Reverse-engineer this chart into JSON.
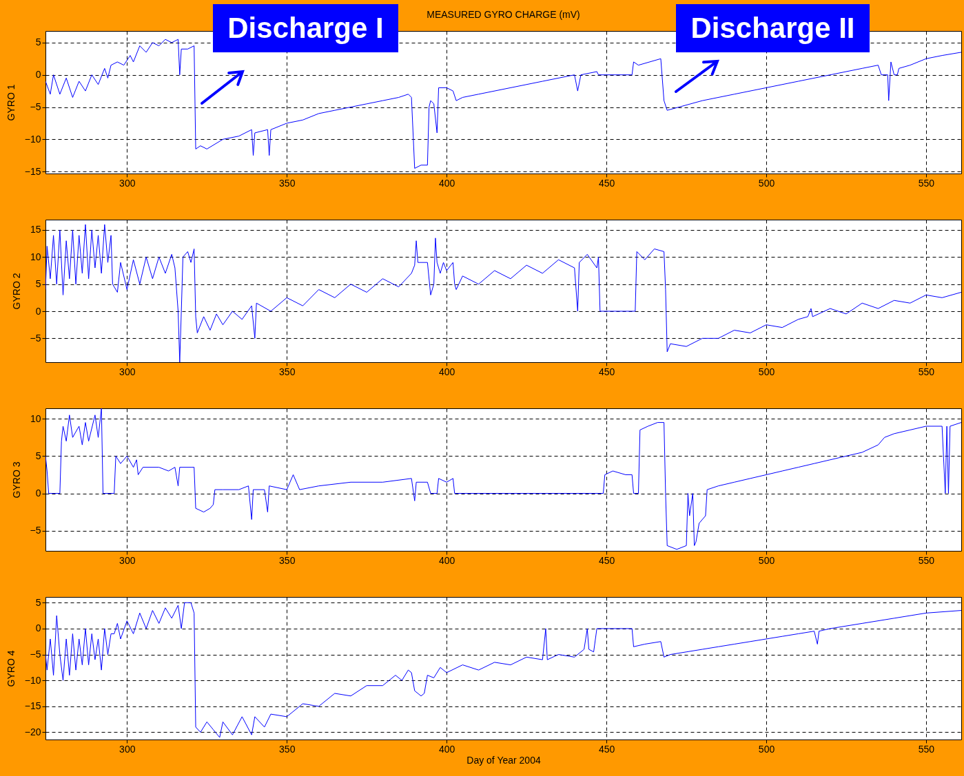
{
  "chart_data": [
    {
      "type": "line",
      "title": "MEASURED GYRO CHARGE (mV)",
      "ylabel": "GYRO 1",
      "xlim": [
        274.5,
        561
      ],
      "xticks": [
        300,
        350,
        400,
        450,
        500,
        550
      ],
      "ylim": [
        -15.3,
        6.8
      ],
      "yticks": [
        -15,
        -10,
        -5,
        0,
        5
      ],
      "grid": true,
      "annotations": [
        "Discharge I",
        "Discharge II"
      ],
      "series": [
        {
          "color": "#0000ff",
          "x": [
            274.5,
            276,
            277,
            279,
            281,
            283,
            285,
            287,
            289,
            291,
            293,
            294,
            295,
            297,
            299,
            301,
            302,
            304,
            306,
            308,
            310,
            312,
            314,
            316,
            316.5,
            317,
            319,
            321,
            321.5,
            323,
            325,
            330,
            335,
            339,
            339.5,
            340,
            344,
            344.5,
            345,
            350,
            355,
            360,
            365,
            370,
            375,
            380,
            385,
            388,
            389,
            390,
            392,
            394,
            394.5,
            395,
            396,
            397,
            397.5,
            400,
            402,
            403,
            405,
            410,
            420,
            430,
            440,
            441,
            442,
            447,
            447.5,
            458,
            458.5,
            460,
            467,
            468,
            469,
            480,
            490,
            500,
            510,
            520,
            530,
            535,
            536,
            538,
            538.3,
            539,
            540,
            541,
            541.5,
            545,
            550,
            555,
            561
          ],
          "values": [
            -1,
            -3,
            0,
            -3,
            -0.5,
            -3.5,
            -1,
            -2.5,
            0,
            -1.5,
            1,
            -0.5,
            1.5,
            2,
            1.5,
            3,
            2,
            4.5,
            3.5,
            5,
            4.5,
            5.5,
            5,
            5.5,
            0,
            4,
            4,
            4.5,
            -11.5,
            -11,
            -11.5,
            -10,
            -9.5,
            -8.5,
            -12.5,
            -9,
            -8.5,
            -12.5,
            -8.5,
            -7.5,
            -7,
            -6,
            -5.5,
            -5,
            -4.5,
            -4,
            -3.5,
            -3,
            -3.5,
            -14.5,
            -14,
            -14,
            -5,
            -4,
            -4.5,
            -9,
            -2,
            -2,
            -2.5,
            -4,
            -3.5,
            -3,
            -2,
            -1,
            0,
            -2.5,
            0,
            0.5,
            0,
            0,
            2,
            1.5,
            2.5,
            -4,
            -5.5,
            -4,
            -3,
            -2,
            -1,
            0,
            1,
            1.5,
            0,
            0,
            -4,
            2,
            0,
            0,
            1,
            1.5,
            2.5,
            3,
            3.5
          ]
        }
      ]
    },
    {
      "type": "line",
      "ylabel": "GYRO 2",
      "xlim": [
        274.5,
        561
      ],
      "xticks": [
        300,
        350,
        400,
        450,
        500,
        550
      ],
      "ylim": [
        -9.4,
        16.9
      ],
      "yticks": [
        -5,
        0,
        5,
        10,
        15
      ],
      "grid": true,
      "series": [
        {
          "color": "#0000ff",
          "x": [
            274.5,
            275,
            276,
            277,
            278,
            279,
            280,
            281,
            282,
            283,
            284,
            285,
            286,
            287,
            288,
            289,
            290,
            291,
            292,
            293,
            294,
            295,
            295.5,
            297,
            298,
            300,
            302,
            304,
            306,
            308,
            310,
            312,
            314,
            315,
            316,
            316.5,
            317,
            317.5,
            319,
            320,
            321,
            321.5,
            322,
            324,
            326,
            328,
            330,
            333,
            336,
            339,
            340,
            340.5,
            345,
            350,
            355,
            360,
            365,
            370,
            375,
            380,
            385,
            389,
            390,
            390.5,
            391,
            394,
            395,
            396,
            396.5,
            397,
            398,
            399,
            400,
            402,
            402.5,
            403,
            405,
            410,
            415,
            420,
            425,
            430,
            435,
            440,
            441,
            441.5,
            444,
            447,
            447.5,
            448,
            459,
            459.5,
            462,
            465,
            468,
            468.5,
            469,
            470,
            475,
            480,
            485,
            490,
            495,
            500,
            505,
            510,
            513,
            514,
            514.5,
            520,
            525,
            530,
            535,
            540,
            545,
            550,
            555,
            561
          ],
          "values": [
            4,
            12,
            6,
            14,
            5,
            15,
            3,
            13,
            6,
            15,
            5,
            14,
            7,
            16,
            6,
            15,
            8,
            14,
            7,
            16,
            9,
            14,
            5,
            3.5,
            9,
            4,
            9.5,
            5,
            10,
            6,
            10,
            7,
            10.5,
            8,
            0,
            -9.4,
            0,
            10,
            11,
            9,
            11.5,
            -1,
            -4,
            -1,
            -3.5,
            -0.5,
            -2.5,
            0,
            -1.5,
            1,
            -5,
            1.5,
            0,
            2.5,
            1,
            4,
            2.5,
            5,
            3.5,
            6,
            4.5,
            7,
            8.5,
            13,
            9,
            9,
            3,
            5,
            13.5,
            9,
            7,
            9,
            7.5,
            9,
            5,
            4,
            6.5,
            5,
            7.5,
            6,
            8.5,
            7,
            9.5,
            8,
            0,
            9,
            10.5,
            8,
            10,
            0,
            0,
            11,
            9.5,
            11.5,
            11,
            4,
            -7.5,
            -6,
            -6.5,
            -5,
            -5,
            -3.5,
            -4,
            -2.5,
            -3,
            -1.5,
            -1,
            0.5,
            -1,
            0.5,
            -0.5,
            1.5,
            0.5,
            2,
            1.5,
            3,
            2.5,
            3.5
          ]
        }
      ]
    },
    {
      "type": "line",
      "ylabel": "GYRO 3",
      "xlim": [
        274.5,
        561
      ],
      "xticks": [
        300,
        350,
        400,
        450,
        500,
        550
      ],
      "ylim": [
        -7.7,
        11.4
      ],
      "yticks": [
        -5,
        0,
        5,
        10
      ],
      "grid": true,
      "series": [
        {
          "color": "#0000ff",
          "x": [
            274.5,
            275,
            275.5,
            279,
            279.5,
            280,
            281,
            282,
            283,
            285,
            286,
            287,
            288,
            290,
            291,
            292,
            292.5,
            296,
            296.5,
            298,
            300,
            302,
            303,
            303.5,
            305,
            310,
            313,
            315,
            316,
            316.5,
            320,
            321,
            321.5,
            324,
            326,
            327,
            327.5,
            330,
            335,
            338,
            339,
            339.5,
            343,
            344,
            344.5,
            350,
            352,
            354,
            360,
            370,
            380,
            389,
            390,
            390.5,
            394,
            395,
            397,
            397.5,
            400,
            402,
            402.5,
            449,
            449.5,
            452,
            456,
            458,
            458.5,
            460,
            460.5,
            463,
            466,
            468,
            468.5,
            469,
            472,
            475,
            475.5,
            476,
            477,
            477.5,
            478,
            479,
            481,
            481.5,
            485,
            490,
            495,
            500,
            505,
            510,
            515,
            520,
            525,
            530,
            535,
            537,
            540,
            545,
            550,
            555,
            556,
            556.5,
            557,
            557.5,
            561
          ],
          "values": [
            5,
            3,
            0,
            0,
            7,
            9,
            7,
            10.5,
            7.5,
            9,
            6.5,
            9.5,
            7,
            10.5,
            7.5,
            11.4,
            0,
            0,
            5,
            4,
            5,
            3.5,
            4.5,
            2.5,
            3.5,
            3.5,
            3,
            3.5,
            1,
            3.5,
            3.5,
            3.5,
            -2,
            -2.5,
            -2,
            -1.5,
            0.5,
            0.5,
            0.5,
            1,
            -3.5,
            0.5,
            0.5,
            -2.5,
            1,
            0.5,
            2.5,
            0.5,
            1,
            1.5,
            1.5,
            2,
            -1,
            1.5,
            1.5,
            0,
            0,
            2,
            1.5,
            2,
            0,
            0,
            2.5,
            3,
            2.5,
            2.5,
            0,
            0,
            8.5,
            9,
            9.5,
            9.5,
            0,
            -7,
            -7.5,
            -7,
            0,
            -3,
            0,
            -7,
            -6.5,
            -4,
            -3,
            0.5,
            1,
            1.5,
            2,
            2.5,
            3,
            3.5,
            4,
            4.5,
            5,
            5.5,
            6.5,
            7.5,
            8,
            8.5,
            9,
            9,
            0,
            9,
            0,
            9,
            9.5
          ]
        }
      ]
    },
    {
      "type": "line",
      "ylabel": "GYRO 4",
      "xlabel": "Day of Year 2004",
      "xlim": [
        274.5,
        561
      ],
      "xticks": [
        300,
        350,
        400,
        450,
        500,
        550
      ],
      "ylim": [
        -21.4,
        6.1
      ],
      "yticks": [
        -20,
        -15,
        -10,
        -5,
        0,
        5
      ],
      "grid": true,
      "series": [
        {
          "color": "#0000ff",
          "x": [
            274.5,
            275,
            276,
            277,
            278,
            279,
            280,
            281,
            282,
            283,
            284,
            285,
            286,
            287,
            288,
            289,
            290,
            291,
            292,
            293,
            294,
            295,
            296,
            297,
            298,
            300,
            302,
            304,
            306,
            308,
            310,
            312,
            314,
            316,
            317,
            318,
            320,
            321,
            321.5,
            323,
            325,
            327,
            329,
            330,
            333,
            336,
            339,
            340,
            343,
            345,
            350,
            355,
            360,
            365,
            370,
            375,
            380,
            384,
            386,
            388,
            389,
            390,
            392,
            393,
            394,
            396,
            398,
            400,
            405,
            410,
            415,
            420,
            425,
            430,
            431,
            431.5,
            435,
            440,
            443,
            444,
            444.5,
            446,
            447,
            458,
            458.5,
            462,
            467,
            468,
            470,
            475,
            480,
            485,
            490,
            495,
            500,
            505,
            510,
            515,
            516,
            516.5,
            520,
            530,
            540,
            550,
            561
          ],
          "values": [
            -5,
            -8,
            -2,
            -9,
            2.5,
            -5,
            -10,
            -2,
            -9,
            -1,
            -8,
            -2,
            -7,
            0,
            -7,
            -1,
            -6,
            -2,
            -8,
            0,
            -5,
            -1,
            -1,
            1,
            -2,
            1.5,
            -1,
            3,
            0,
            3.5,
            1,
            4,
            2,
            4.5,
            0,
            5,
            5,
            3,
            -19,
            -20,
            -18,
            -19.5,
            -21,
            -18,
            -20.5,
            -17,
            -20.5,
            -17,
            -19,
            -16.5,
            -17,
            -14.5,
            -15,
            -12.5,
            -13,
            -11,
            -11,
            -9,
            -10,
            -8,
            -8.5,
            -12,
            -13,
            -12.5,
            -9,
            -9.5,
            -7.5,
            -8.5,
            -7,
            -8,
            -6.5,
            -7,
            -5.5,
            -6,
            0,
            -6,
            -5,
            -5.5,
            -4,
            0,
            -4,
            -4.5,
            0,
            0,
            -3.5,
            -3,
            -2.5,
            -5.5,
            -5,
            -4.5,
            -4,
            -3.5,
            -3,
            -2.5,
            -2,
            -1.5,
            -1,
            -0.5,
            -3,
            -0.5,
            0,
            1,
            2,
            3,
            3.5
          ]
        }
      ]
    }
  ]
}
